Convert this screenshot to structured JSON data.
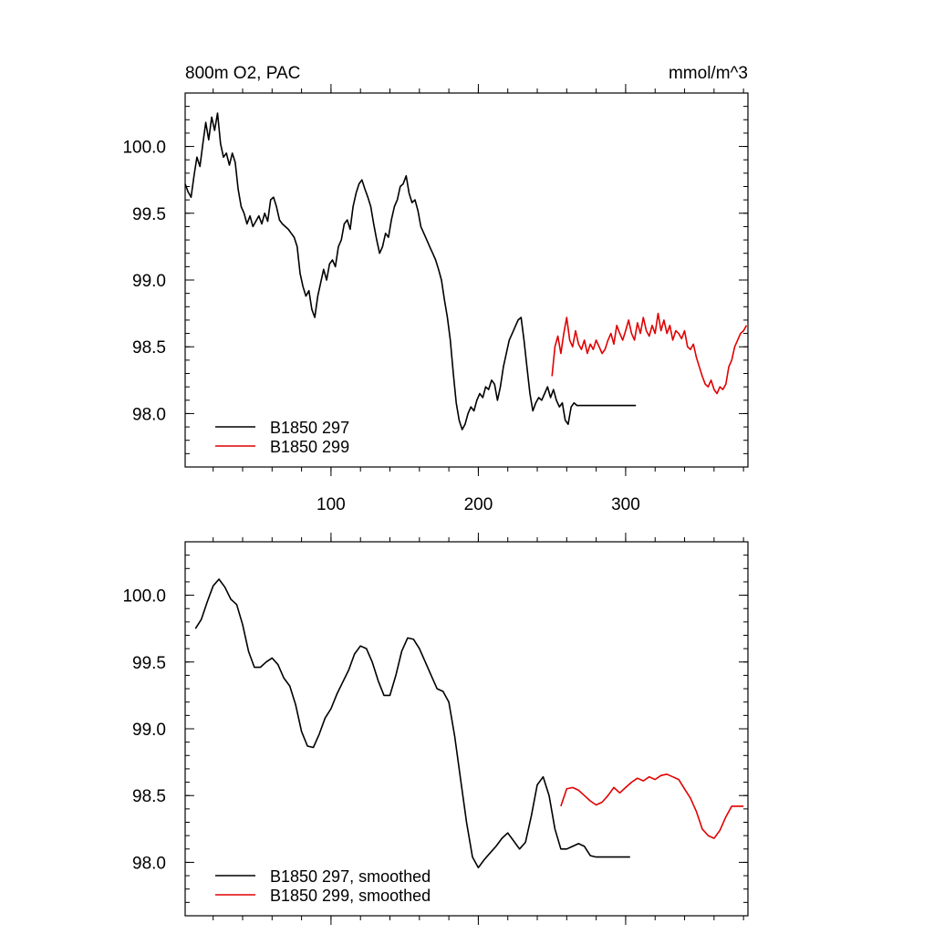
{
  "chart_data": [
    {
      "type": "line",
      "title_left": "800m O2, PAC",
      "title_right": "mmol/m^3",
      "xlabel": "",
      "ylabel": "",
      "xlim": [
        1,
        383
      ],
      "ylim": [
        97.6,
        100.4
      ],
      "xticks": [
        100,
        200,
        300
      ],
      "xtick_labels": [
        "100",
        "200",
        "300"
      ],
      "yticks": [
        98.0,
        98.5,
        99.0,
        99.5,
        100.0
      ],
      "ytick_labels": [
        "98.0",
        "98.5",
        "99.0",
        "99.5",
        "100.0"
      ],
      "legend_position": "bottom-left",
      "series": [
        {
          "name": "B1850 297",
          "color": "#000000",
          "x": [
            1,
            3,
            5,
            7,
            9,
            11,
            13,
            15,
            17,
            19,
            21,
            23,
            25,
            27,
            29,
            31,
            33,
            35,
            37,
            39,
            41,
            43,
            45,
            47,
            49,
            51,
            53,
            55,
            57,
            59,
            61,
            63,
            65,
            67,
            69,
            71,
            73,
            75,
            77,
            79,
            81,
            83,
            85,
            87,
            89,
            91,
            93,
            95,
            97,
            99,
            101,
            103,
            105,
            107,
            109,
            111,
            113,
            115,
            117,
            119,
            121,
            123,
            125,
            127,
            129,
            131,
            133,
            135,
            137,
            139,
            141,
            143,
            145,
            147,
            149,
            151,
            153,
            155,
            157,
            159,
            161,
            163,
            165,
            167,
            169,
            171,
            173,
            175,
            177,
            179,
            181,
            183,
            185,
            187,
            189,
            191,
            193,
            195,
            197,
            199,
            201,
            203,
            205,
            207,
            209,
            211,
            213,
            215,
            217,
            219,
            221,
            223,
            225,
            227,
            229,
            231,
            233,
            235,
            237,
            239,
            241,
            243,
            245,
            247,
            249,
            251,
            253,
            255,
            257,
            259,
            261,
            263,
            265,
            267,
            269,
            271,
            273,
            275,
            277,
            279,
            281,
            283,
            285,
            287,
            289,
            291,
            293,
            295,
            297,
            299,
            301,
            303,
            305,
            307
          ],
          "y": [
            99.72,
            99.66,
            99.62,
            99.78,
            99.92,
            99.85,
            100.02,
            100.18,
            100.05,
            100.22,
            100.12,
            100.25,
            100.02,
            99.92,
            99.95,
            99.86,
            99.95,
            99.88,
            99.68,
            99.55,
            99.5,
            99.42,
            99.48,
            99.4,
            99.44,
            99.48,
            99.42,
            99.5,
            99.44,
            99.6,
            99.62,
            99.55,
            99.45,
            99.42,
            99.4,
            99.38,
            99.35,
            99.32,
            99.25,
            99.05,
            98.95,
            98.88,
            98.92,
            98.78,
            98.72,
            98.88,
            98.98,
            99.08,
            99.0,
            99.12,
            99.15,
            99.1,
            99.25,
            99.3,
            99.42,
            99.45,
            99.38,
            99.55,
            99.65,
            99.72,
            99.75,
            99.68,
            99.62,
            99.55,
            99.42,
            99.3,
            99.2,
            99.25,
            99.35,
            99.32,
            99.45,
            99.55,
            99.6,
            99.7,
            99.72,
            99.78,
            99.65,
            99.58,
            99.6,
            99.52,
            99.4,
            99.35,
            99.3,
            99.25,
            99.2,
            99.15,
            99.08,
            99.0,
            98.85,
            98.72,
            98.55,
            98.3,
            98.08,
            97.95,
            97.88,
            97.92,
            98.0,
            98.05,
            98.02,
            98.1,
            98.15,
            98.12,
            98.2,
            98.18,
            98.25,
            98.22,
            98.1,
            98.2,
            98.35,
            98.45,
            98.55,
            98.6,
            98.65,
            98.7,
            98.72,
            98.55,
            98.35,
            98.15,
            98.02,
            98.08,
            98.12,
            98.1,
            98.15,
            98.2,
            98.12,
            98.18,
            98.1,
            98.05,
            98.08,
            97.95,
            97.92,
            98.05,
            98.08,
            98.06,
            98.06,
            98.06,
            98.06,
            98.06,
            98.06,
            98.06,
            98.06,
            98.06,
            98.06,
            98.06,
            98.06,
            98.06,
            98.06,
            98.06,
            98.06,
            98.06,
            98.06,
            98.06,
            98.06,
            98.06
          ]
        },
        {
          "name": "B1850 299",
          "color": "#e00000",
          "x": [
            250,
            252,
            254,
            256,
            258,
            260,
            262,
            264,
            266,
            268,
            270,
            272,
            274,
            276,
            278,
            280,
            282,
            284,
            286,
            288,
            290,
            292,
            294,
            296,
            298,
            300,
            302,
            304,
            306,
            308,
            310,
            312,
            314,
            316,
            318,
            320,
            322,
            324,
            326,
            328,
            330,
            332,
            334,
            336,
            338,
            340,
            342,
            344,
            346,
            348,
            350,
            352,
            354,
            356,
            358,
            360,
            362,
            364,
            366,
            368,
            370,
            372,
            374,
            376,
            378,
            380,
            382
          ],
          "y": [
            98.28,
            98.5,
            98.58,
            98.45,
            98.6,
            98.72,
            98.55,
            98.5,
            98.62,
            98.52,
            98.48,
            98.55,
            98.45,
            98.52,
            98.48,
            98.55,
            98.5,
            98.45,
            98.48,
            98.55,
            98.6,
            98.52,
            98.66,
            98.6,
            98.55,
            98.62,
            98.7,
            98.6,
            98.55,
            98.68,
            98.6,
            98.72,
            98.62,
            98.58,
            98.66,
            98.6,
            98.75,
            98.62,
            98.7,
            98.6,
            98.66,
            98.55,
            98.62,
            98.6,
            98.56,
            98.62,
            98.5,
            98.48,
            98.52,
            98.42,
            98.35,
            98.28,
            98.22,
            98.2,
            98.25,
            98.18,
            98.15,
            98.2,
            98.18,
            98.22,
            98.35,
            98.4,
            98.5,
            98.55,
            98.6,
            98.62,
            98.66
          ]
        }
      ]
    },
    {
      "type": "line",
      "title_left": "",
      "title_right": "",
      "xlabel": "",
      "ylabel": "",
      "xlim": [
        1,
        383
      ],
      "ylim": [
        97.6,
        100.4
      ],
      "xticks": [
        100,
        200,
        300
      ],
      "xtick_labels": [],
      "yticks": [
        98.0,
        98.5,
        99.0,
        99.5,
        100.0
      ],
      "ytick_labels": [
        "98.0",
        "98.5",
        "99.0",
        "99.5",
        "100.0"
      ],
      "legend_position": "bottom-left",
      "series": [
        {
          "name": "B1850 297, smoothed",
          "color": "#000000",
          "x": [
            8,
            12,
            16,
            20,
            24,
            28,
            32,
            36,
            40,
            44,
            48,
            52,
            56,
            60,
            64,
            68,
            72,
            76,
            80,
            84,
            88,
            92,
            96,
            100,
            104,
            108,
            112,
            116,
            120,
            124,
            128,
            132,
            136,
            140,
            144,
            148,
            152,
            156,
            160,
            164,
            168,
            172,
            176,
            180,
            184,
            188,
            192,
            196,
            200,
            204,
            208,
            212,
            216,
            220,
            224,
            228,
            232,
            236,
            240,
            244,
            248,
            252,
            256,
            260,
            264,
            268,
            272,
            276,
            280,
            284,
            288,
            292,
            296,
            300,
            303
          ],
          "y": [
            99.75,
            99.82,
            99.95,
            100.07,
            100.12,
            100.06,
            99.97,
            99.93,
            99.78,
            99.58,
            99.46,
            99.46,
            99.5,
            99.53,
            99.48,
            99.38,
            99.32,
            99.18,
            98.98,
            98.87,
            98.86,
            98.96,
            99.08,
            99.15,
            99.26,
            99.35,
            99.44,
            99.56,
            99.62,
            99.6,
            99.5,
            99.36,
            99.25,
            99.25,
            99.4,
            99.58,
            99.68,
            99.67,
            99.6,
            99.5,
            99.4,
            99.3,
            99.28,
            99.2,
            98.94,
            98.62,
            98.3,
            98.04,
            97.96,
            98.02,
            98.07,
            98.12,
            98.18,
            98.22,
            98.16,
            98.1,
            98.15,
            98.35,
            98.58,
            98.64,
            98.5,
            98.25,
            98.1,
            98.1,
            98.12,
            98.14,
            98.12,
            98.05,
            98.04,
            98.04,
            98.04,
            98.04,
            98.04,
            98.04,
            98.04
          ]
        },
        {
          "name": "B1850 299, smoothed",
          "color": "#e00000",
          "x": [
            256,
            260,
            264,
            268,
            272,
            276,
            280,
            284,
            288,
            292,
            296,
            300,
            304,
            308,
            312,
            316,
            320,
            324,
            328,
            332,
            336,
            340,
            344,
            348,
            352,
            356,
            360,
            364,
            368,
            372,
            376,
            380
          ],
          "y": [
            98.42,
            98.55,
            98.56,
            98.54,
            98.5,
            98.46,
            98.43,
            98.45,
            98.5,
            98.56,
            98.52,
            98.56,
            98.6,
            98.63,
            98.61,
            98.64,
            98.62,
            98.65,
            98.66,
            98.64,
            98.62,
            98.55,
            98.48,
            98.38,
            98.25,
            98.2,
            98.18,
            98.24,
            98.34,
            98.42,
            98.42,
            98.42
          ]
        }
      ]
    }
  ]
}
